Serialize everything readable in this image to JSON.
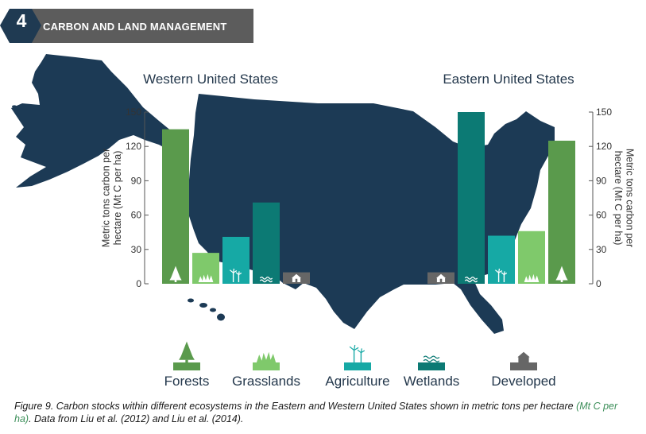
{
  "header": {
    "chapter_number": "4",
    "chapter_title": "CARBON AND LAND MANAGEMENT"
  },
  "colors": {
    "map": "#1c3a55",
    "header_bg": "#5c5c5c",
    "header_badge": "#1f3a52",
    "forests": "#5a9a4c",
    "grasslands": "#7fc96b",
    "agriculture": "#16a9a5",
    "wetlands": "#0c7a74",
    "developed": "#666666"
  },
  "legend": {
    "items": [
      {
        "key": "forests",
        "label": "Forests",
        "icon": "tree-icon"
      },
      {
        "key": "grasslands",
        "label": "Grasslands",
        "icon": "grass-icon"
      },
      {
        "key": "agriculture",
        "label": "Agriculture",
        "icon": "wind-turbine-icon"
      },
      {
        "key": "wetlands",
        "label": "Wetlands",
        "icon": "water-waves-icon"
      },
      {
        "key": "developed",
        "label": "Developed",
        "icon": "house-icon"
      }
    ]
  },
  "caption": {
    "part1": "Figure 9. Carbon stocks within different ecosystems in the Eastern and Western United States shown in metric tons per hectare ",
    "highlight": "(Mt C per ha)",
    "part2": ". Data from Liu et al. (2012) and Liu et al. (2014)."
  },
  "chart_data": [
    {
      "type": "bar",
      "title": "Western United States",
      "ylabel": "Metric tons carbon per hectare (Mt C per ha)",
      "axis_side": "left",
      "ylim": [
        0,
        150
      ],
      "yticks": [
        0,
        30,
        60,
        90,
        120,
        150
      ],
      "categories": [
        "Forests",
        "Grasslands",
        "Agriculture",
        "Wetlands",
        "Developed"
      ],
      "values": [
        135,
        27,
        41,
        71,
        10
      ]
    },
    {
      "type": "bar",
      "title": "Eastern United States",
      "ylabel": "Metric tons carbon per hectare (Mt C per ha)",
      "axis_side": "right",
      "ylim": [
        0,
        150
      ],
      "yticks": [
        0,
        30,
        60,
        90,
        120,
        150
      ],
      "categories": [
        "Developed",
        "Wetlands",
        "Agriculture",
        "Grasslands",
        "Forests"
      ],
      "values": [
        10,
        150,
        42,
        46,
        125
      ]
    }
  ]
}
